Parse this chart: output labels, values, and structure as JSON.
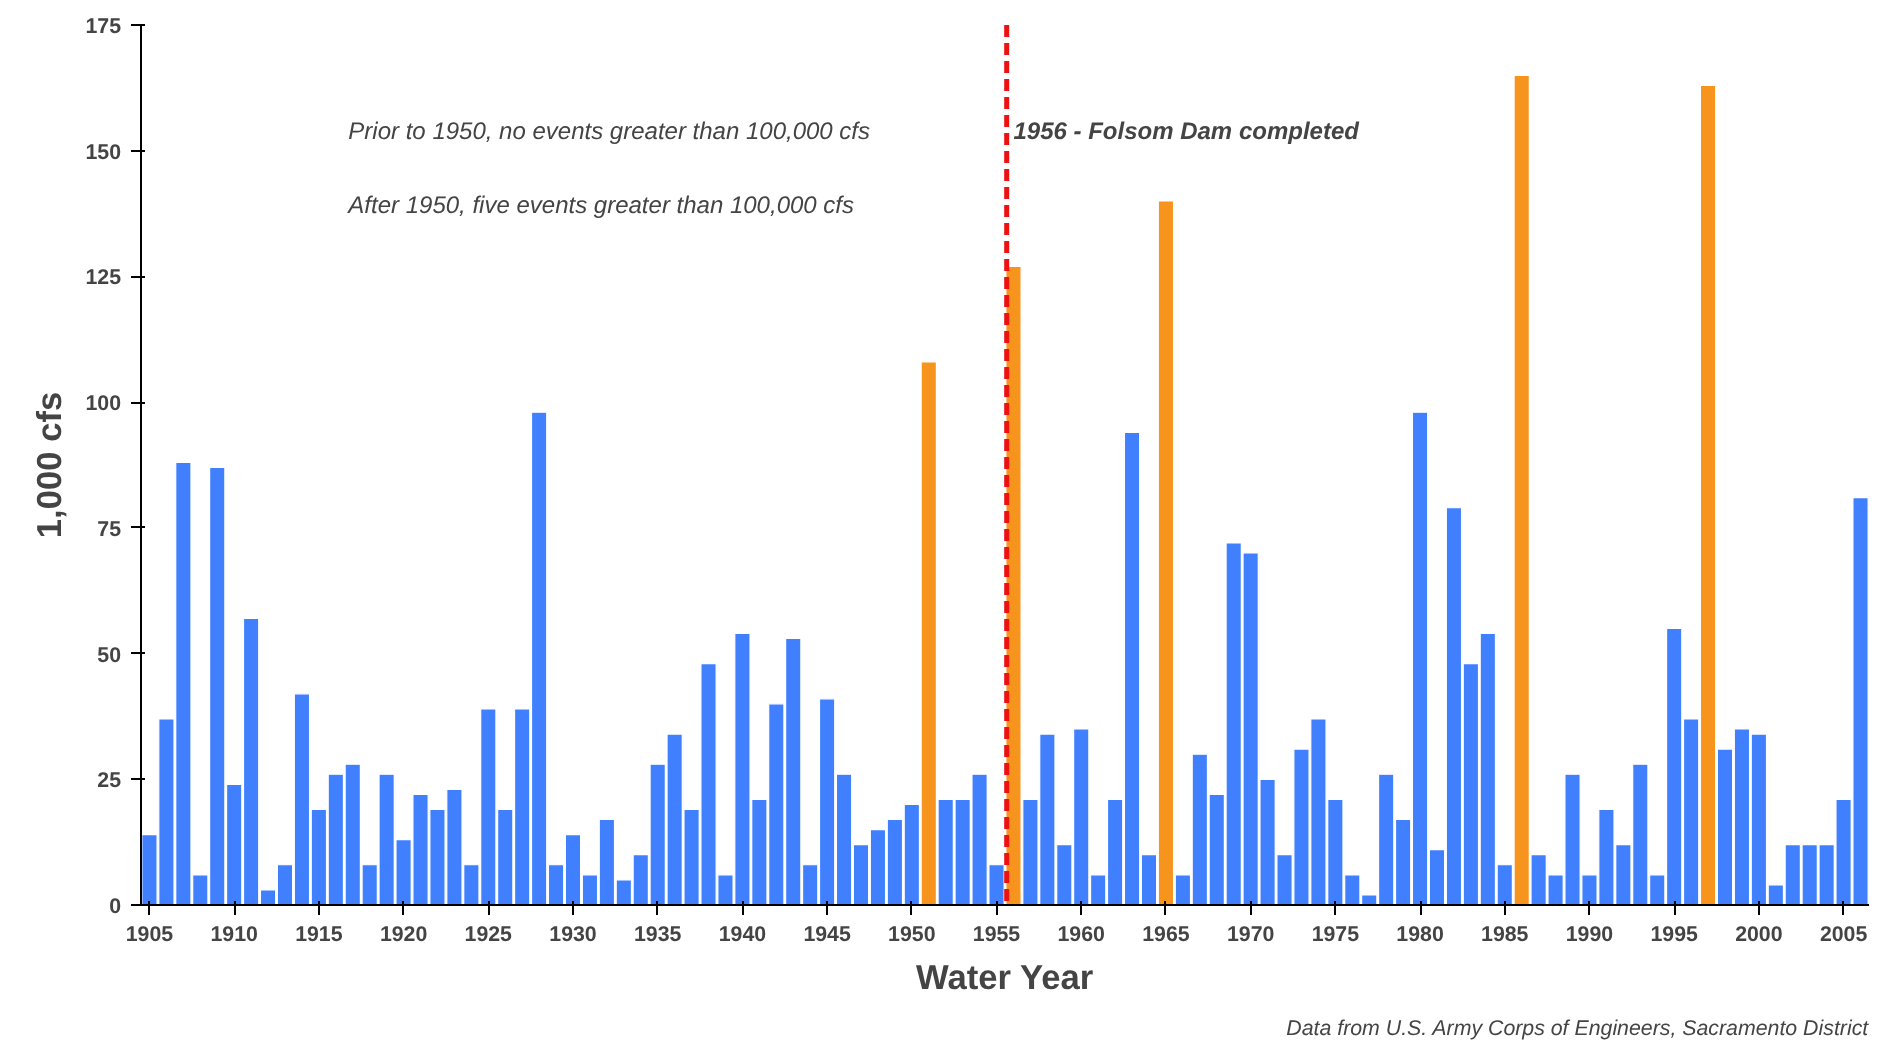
{
  "chart_data": {
    "type": "bar",
    "xlabel": "Water Year",
    "ylabel": "1,000 cfs",
    "x": [
      1905,
      1906,
      1907,
      1908,
      1909,
      1910,
      1911,
      1912,
      1913,
      1914,
      1915,
      1916,
      1917,
      1918,
      1919,
      1920,
      1921,
      1922,
      1923,
      1924,
      1925,
      1926,
      1927,
      1928,
      1929,
      1930,
      1931,
      1932,
      1933,
      1934,
      1935,
      1936,
      1937,
      1938,
      1939,
      1940,
      1941,
      1942,
      1943,
      1944,
      1945,
      1946,
      1947,
      1948,
      1949,
      1950,
      1951,
      1952,
      1953,
      1954,
      1955,
      1956,
      1957,
      1958,
      1959,
      1960,
      1961,
      1962,
      1963,
      1964,
      1965,
      1966,
      1967,
      1968,
      1969,
      1970,
      1971,
      1972,
      1973,
      1974,
      1975,
      1976,
      1977,
      1978,
      1979,
      1980,
      1981,
      1982,
      1983,
      1984,
      1985,
      1986,
      1987,
      1988,
      1989,
      1990,
      1991,
      1992,
      1993,
      1994,
      1995,
      1996,
      1997,
      1998,
      1999,
      2000,
      2001,
      2002,
      2003,
      2004,
      2005,
      2006
    ],
    "values": [
      14,
      37,
      88,
      6,
      87,
      24,
      57,
      3,
      8,
      42,
      19,
      26,
      28,
      8,
      26,
      13,
      22,
      19,
      23,
      8,
      39,
      19,
      39,
      98,
      8,
      14,
      6,
      17,
      5,
      10,
      28,
      34,
      19,
      48,
      6,
      54,
      21,
      40,
      53,
      8,
      41,
      26,
      12,
      15,
      17,
      20,
      108,
      21,
      21,
      26,
      8,
      127,
      21,
      34,
      12,
      35,
      6,
      21,
      94,
      10,
      140,
      6,
      30,
      22,
      72,
      70,
      25,
      10,
      31,
      37,
      21,
      6,
      2,
      26,
      17,
      98,
      11,
      79,
      48,
      54,
      8,
      165,
      10,
      6,
      26,
      6,
      19,
      12,
      28,
      6,
      55,
      37,
      163,
      31,
      35,
      34,
      4,
      12,
      12,
      12,
      21,
      81
    ],
    "colors": [
      "#4080ff",
      "#4080ff",
      "#4080ff",
      "#4080ff",
      "#4080ff",
      "#4080ff",
      "#4080ff",
      "#4080ff",
      "#4080ff",
      "#4080ff",
      "#4080ff",
      "#4080ff",
      "#4080ff",
      "#4080ff",
      "#4080ff",
      "#4080ff",
      "#4080ff",
      "#4080ff",
      "#4080ff",
      "#4080ff",
      "#4080ff",
      "#4080ff",
      "#4080ff",
      "#4080ff",
      "#4080ff",
      "#4080ff",
      "#4080ff",
      "#4080ff",
      "#4080ff",
      "#4080ff",
      "#4080ff",
      "#4080ff",
      "#4080ff",
      "#4080ff",
      "#4080ff",
      "#4080ff",
      "#4080ff",
      "#4080ff",
      "#4080ff",
      "#4080ff",
      "#4080ff",
      "#4080ff",
      "#4080ff",
      "#4080ff",
      "#4080ff",
      "#4080ff",
      "#f7941d",
      "#4080ff",
      "#4080ff",
      "#4080ff",
      "#4080ff",
      "#f7941d",
      "#4080ff",
      "#4080ff",
      "#4080ff",
      "#4080ff",
      "#4080ff",
      "#4080ff",
      "#4080ff",
      "#4080ff",
      "#f7941d",
      "#4080ff",
      "#4080ff",
      "#4080ff",
      "#4080ff",
      "#4080ff",
      "#4080ff",
      "#4080ff",
      "#4080ff",
      "#4080ff",
      "#4080ff",
      "#4080ff",
      "#4080ff",
      "#4080ff",
      "#4080ff",
      "#4080ff",
      "#4080ff",
      "#4080ff",
      "#4080ff",
      "#4080ff",
      "#4080ff",
      "#f7941d",
      "#4080ff",
      "#4080ff",
      "#4080ff",
      "#4080ff",
      "#4080ff",
      "#4080ff",
      "#4080ff",
      "#4080ff",
      "#4080ff",
      "#4080ff",
      "#f7941d",
      "#4080ff",
      "#4080ff",
      "#4080ff",
      "#4080ff",
      "#4080ff",
      "#4080ff",
      "#4080ff",
      "#4080ff",
      "#4080ff"
    ],
    "xlim": [
      1904.5,
      2006.5
    ],
    "xticks": [
      1905,
      1910,
      1915,
      1920,
      1925,
      1930,
      1935,
      1940,
      1945,
      1950,
      1955,
      1960,
      1965,
      1970,
      1975,
      1980,
      1985,
      1990,
      1995,
      2000,
      2005
    ],
    "ylim": [
      0,
      175
    ],
    "yticks": [
      0,
      25,
      50,
      75,
      100,
      125,
      150,
      175
    ],
    "grid": false,
    "ref_lines": [
      {
        "axis": "x",
        "value": 1955.6,
        "label": "1956 - Folsom Dam completed",
        "color": "#ee1111",
        "line_style": "dashed"
      }
    ],
    "annotations": [
      "Prior to 1950, no events greater than 100,000 cfs",
      "After 1950, five events greater than 100,000 cfs",
      "Data from U.S. Army Corps of Engineers, Sacramento District"
    ]
  }
}
